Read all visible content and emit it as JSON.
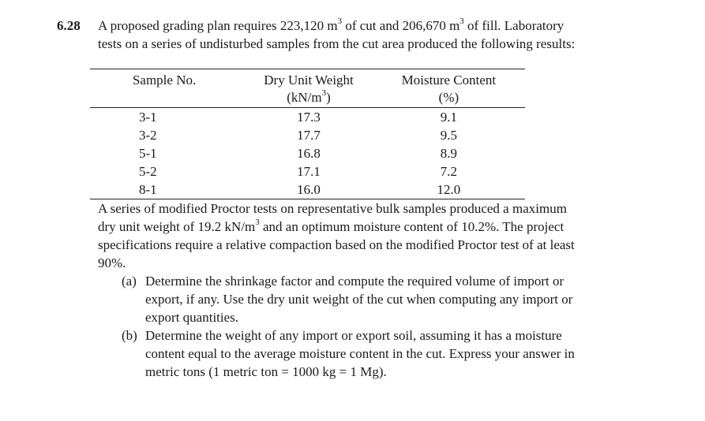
{
  "problem": {
    "number": "6.28",
    "intro_lines": [
      [
        "A proposed grading plan requires 223,120 m",
        "3",
        " of cut and 206,670 m",
        "3",
        " of fill.  Laboratory"
      ],
      [
        "tests on a series of undisturbed samples from the cut area produced the following results:"
      ]
    ]
  },
  "table": {
    "headers": {
      "sample": "Sample No.",
      "dry_unit_weight_line1": "Dry Unit Weight",
      "dry_unit_weight_line2_pre": "(kN/m",
      "dry_unit_weight_line2_sup": "3",
      "dry_unit_weight_line2_post": ")",
      "moisture_line1": "Moisture Content",
      "moisture_line2": "(%)"
    },
    "rows": [
      {
        "sample": "3-1",
        "dry_unit_weight": "17.3",
        "moisture": "9.1"
      },
      {
        "sample": "3-2",
        "dry_unit_weight": "17.7",
        "moisture": "9.5"
      },
      {
        "sample": "5-1",
        "dry_unit_weight": "16.8",
        "moisture": "8.9"
      },
      {
        "sample": "5-2",
        "dry_unit_weight": "17.1",
        "moisture": "7.2"
      },
      {
        "sample": "8-1",
        "dry_unit_weight": "16.0",
        "moisture": "12.0"
      }
    ]
  },
  "paragraph": {
    "line1": "A series of modified Proctor tests on representative bulk samples produced a maximum",
    "line2_pre": "dry unit weight of 19.2 kN/m",
    "line2_sup": "3",
    "line2_post": " and an optimum moisture content of 10.2%.  The project",
    "line3": "specifications require a relative compaction based on the modified Proctor test of at least",
    "line4": "90%."
  },
  "parts": {
    "a": {
      "label": "(a)",
      "lines": [
        "Determine the shrinkage factor and compute the required volume of import or",
        "export, if any.  Use the dry unit weight of the cut when computing any import or",
        "export quantities."
      ]
    },
    "b": {
      "label": "(b)",
      "lines": [
        "Determine the weight of any import or export soil, assuming it has a moisture",
        "content equal to the average moisture content in the cut.  Express your answer in",
        "metric tons (1 metric ton = 1000 kg = 1 Mg)."
      ]
    }
  }
}
